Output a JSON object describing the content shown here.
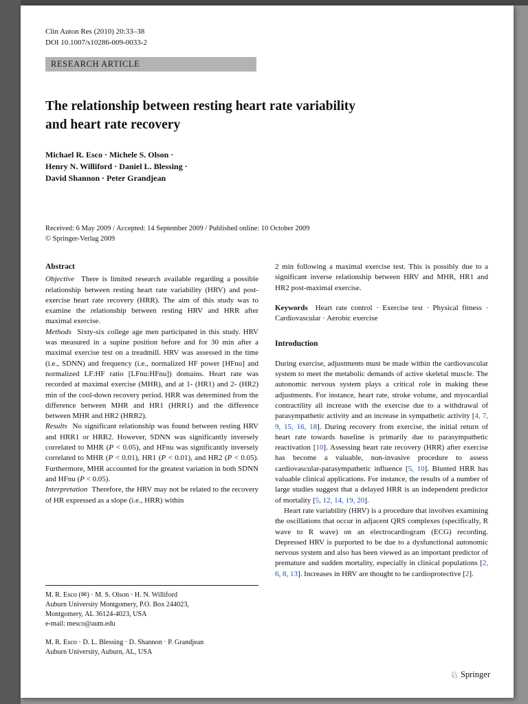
{
  "colors": {
    "citation": "#1553b5",
    "banner": "#b3b3b3"
  },
  "page": {
    "journal_line": "Clin Auton Res (2010) 20:33–38",
    "doi_line": "DOI 10.1007/s10286-009-0033-2",
    "article_type": "RESEARCH ARTICLE",
    "title_lines": [
      "The relationship between resting heart rate variability",
      "and heart rate recovery"
    ],
    "authors_lines": [
      "Michael R. Esco · Michele S. Olson ·",
      "Henry N. Williford · Daniel L. Blessing ·",
      "David Shannon · Peter Grandjean"
    ],
    "received_line": "Received: 6 May 2009 / Accepted: 14 September 2009 / Published online: 10 October 2009",
    "copyright_line": "© Springer-Verlag 2009"
  },
  "abstract": {
    "heading": "Abstract",
    "sections": [
      {
        "label": "Objective",
        "text": "There is limited research available regarding a possible relationship between resting heart rate variability (HRV) and post-exercise heart rate recovery (HRR). The aim of this study was to examine the relationship between resting HRV and HRR after maximal exercise."
      },
      {
        "label": "Methods",
        "text": "Sixty-six college age men participated in this study. HRV was measured in a supine position before and for 30 min after a maximal exercise test on a treadmill. HRV was assessed in the time (i.e., SDNN) and frequency (i.e., normalized HF power [HFnu] and normalized LF:HF ratio [LFnu:HFnu]) domains. Heart rate was recorded at maximal exercise (MHR), and at 1- (HR1) and 2- (HR2) min of the cool-down recovery period. HRR was determined from the difference between MHR and HR1 (HRR1) and the difference between MHR and HR2 (HRR2)."
      },
      {
        "label": "Results",
        "text": "No significant relationship was found between resting HRV and HRR1 or HRR2. However, SDNN was significantly inversely correlated to MHR (P < 0.05), and HFnu was significantly inversely correlated to MHR (P < 0.01), HR1 (P < 0.01), and HR2 (P < 0.05). Furthermore, MHR accounted for the greatest variation in both SDNN and HFnu (P < 0.05)."
      },
      {
        "label": "Interpretation",
        "text": "Therefore, the HRV may not be related to the recovery of HR expressed as a slope (i.e., HRR) within"
      }
    ],
    "continuation": "2 min following a maximal exercise test. This is possibly due to a significant inverse relationship between HRV and MHR, HR1 and HR2 post-maximal exercise."
  },
  "keywords": {
    "label": "Keywords",
    "text": "Heart rate control · Exercise test · Physical fitness · Cardiovascular · Aerobic exercise"
  },
  "introduction": {
    "heading": "Introduction",
    "paragraphs": [
      "During exercise, adjustments must be made within the cardiovascular system to meet the metabolic demands of active skeletal muscle. The autonomic nervous system plays a critical role in making these adjustments. For instance, heart rate, stroke volume, and myocardial contractility all increase with the exercise due to a withdrawal of parasympathetic activity and an increase in sympathetic activity [4, 7, 9, 15, 16, 18]. During recovery from exercise, the initial return of heart rate towards baseline is primarily due to parasympathetic reactivation [10]. Assessing heart rate recovery (HRR) after exercise has become a valuable, non-invasive procedure to assess cardiovascular-parasympathetic influence [5, 10]. Blunted HRR has valuable clinical applications. For instance, the results of a number of large studies suggest that a delayed HRR is an independent predictor of mortality [5, 12, 14, 19, 20].",
      "Heart rate variability (HRV) is a procedure that involves examining the oscillations that occur in adjacent QRS complexes (specifically, R wave to R wave) on an electrocardiogram (ECG) recording. Depressed HRV is purported to be due to a dysfunctional autonomic nervous system and also has been viewed as an important predictor of premature and sudden mortality, especially in clinical populations [2, 6, 8, 13]. Increases in HRV are thought to be cardioprotective [2]."
    ]
  },
  "footnotes": {
    "block1": [
      "M. R. Esco (✉) · M. S. Olson · H. N. Williford",
      "Auburn University Montgomery, P.O. Box 244023,",
      "Montgomery, AL 36124-4023, USA",
      "e-mail: mesco@aum.edu"
    ],
    "block2": [
      "M. R. Esco · D. L. Blessing · D. Shannon · P. Grandjean",
      "Auburn University, Auburn, AL, USA"
    ]
  },
  "footer": {
    "publisher": "Springer"
  }
}
